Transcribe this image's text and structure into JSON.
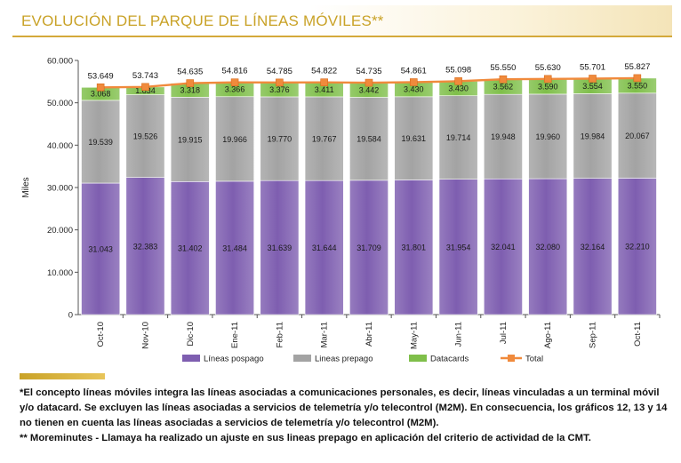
{
  "title": "EVOLUCIÓN DEL PARQUE DE LÍNEAS MÓVILES**",
  "chart_data": {
    "type": "bar",
    "stacked": true,
    "categories": [
      "Oct-10",
      "Nov-10",
      "Dic-10",
      "Ene-11",
      "Feb-11",
      "Mar-11",
      "Abr-11",
      "May-11",
      "Jun-11",
      "Jul-11",
      "Ago-11",
      "Sep-11",
      "Oct-11"
    ],
    "ylabel": "Miles",
    "ylim": [
      0,
      60000
    ],
    "yticks": [
      "0",
      "10.000",
      "20.000",
      "30.000",
      "40.000",
      "50.000",
      "60.000"
    ],
    "grid": false,
    "legend_position": "bottom",
    "series": [
      {
        "name": "Líneas pospago",
        "color": "#7e5eb0",
        "values": [
          31043,
          32383,
          31402,
          31484,
          31639,
          31644,
          31709,
          31801,
          31954,
          32041,
          32080,
          32164,
          32210
        ],
        "labels": [
          "31.043",
          "32.383",
          "31.402",
          "31.484",
          "31.639",
          "31.644",
          "31.709",
          "31.801",
          "31.954",
          "32.041",
          "32.080",
          "32.164",
          "32.210"
        ]
      },
      {
        "name": "Lineas prepago",
        "color": "#a3a3a3",
        "values": [
          19539,
          19526,
          19915,
          19966,
          19770,
          19767,
          19584,
          19631,
          19714,
          19948,
          19960,
          19984,
          20067
        ],
        "labels": [
          "19.539",
          "19.526",
          "19.915",
          "19.966",
          "19.770",
          "19.767",
          "19.584",
          "19.631",
          "19.714",
          "19.948",
          "19.960",
          "19.984",
          "20.067"
        ]
      },
      {
        "name": "Datacards",
        "color": "#7fbf4a",
        "values": [
          3068,
          1834,
          3318,
          3366,
          3376,
          3411,
          3442,
          3430,
          3430,
          3562,
          3590,
          3554,
          3550
        ],
        "labels": [
          "3.068",
          "1.834",
          "3.318",
          "3.366",
          "3.376",
          "3.411",
          "3.442",
          "3.430",
          "3.430",
          "3.562",
          "3.590",
          "3.554",
          "3.550"
        ]
      }
    ],
    "total": {
      "name": "Total",
      "color": "#f08a3c",
      "values": [
        53649,
        53743,
        54635,
        54816,
        54785,
        54822,
        54735,
        54861,
        55098,
        55550,
        55630,
        55701,
        55827
      ],
      "labels": [
        "53.649",
        "53.743",
        "54.635",
        "54.816",
        "54.785",
        "54.822",
        "54.735",
        "54.861",
        "55.098",
        "55.550",
        "55.630",
        "55.701",
        "55.827"
      ]
    }
  },
  "footnotes": [
    "*El concepto líneas móviles integra las líneas asociadas a comunicaciones personales, es decir, líneas vinculadas a un terminal móvil y/o datacard. Se excluyen las líneas asociadas a servicios de telemetría y/o telecontrol (M2M). En consecuencia, los gráficos 12, 13 y 14 no tienen en cuenta las líneas asociadas a servicios de telemetría y/o telecontrol (M2M).",
    "** Moreminutes - Llamaya ha realizado un ajuste en sus lineas prepago en aplicación del criterio de actividad de la CMT."
  ]
}
